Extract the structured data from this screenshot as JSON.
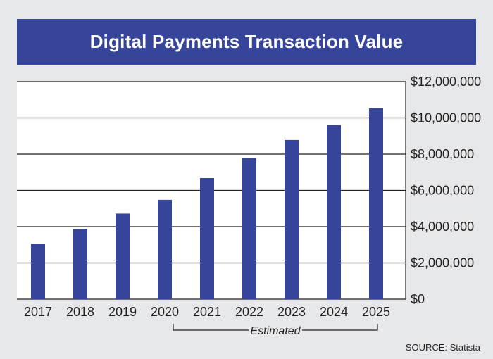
{
  "chart_data": {
    "type": "bar",
    "title": "Digital Payments Transaction Value",
    "categories": [
      "2017",
      "2018",
      "2019",
      "2020",
      "2021",
      "2022",
      "2023",
      "2024",
      "2025"
    ],
    "values": [
      3050000,
      3870000,
      4720000,
      5480000,
      6680000,
      7780000,
      8780000,
      9610000,
      10530000
    ],
    "ylim": [
      0,
      12000000
    ],
    "y_ticks": [
      0,
      2000000,
      4000000,
      6000000,
      8000000,
      10000000,
      12000000
    ],
    "y_tick_labels": [
      "$0",
      "$2,000,000",
      "$4,000,000",
      "$6,000,000",
      "$8,000,000",
      "$10,000,000",
      "$12,000,000"
    ],
    "y_axis_side": "right",
    "grid": true,
    "bar_color": "#36449a",
    "annotation": {
      "text": "Estimated",
      "from_category": "2020",
      "to_category": "2025"
    }
  },
  "source_text": "SOURCE: Statista",
  "colors": {
    "title_bg": "#36449a",
    "page_bg": "#e7e8ea",
    "plot_bg": "#ffffff",
    "grid": "#231f20"
  }
}
